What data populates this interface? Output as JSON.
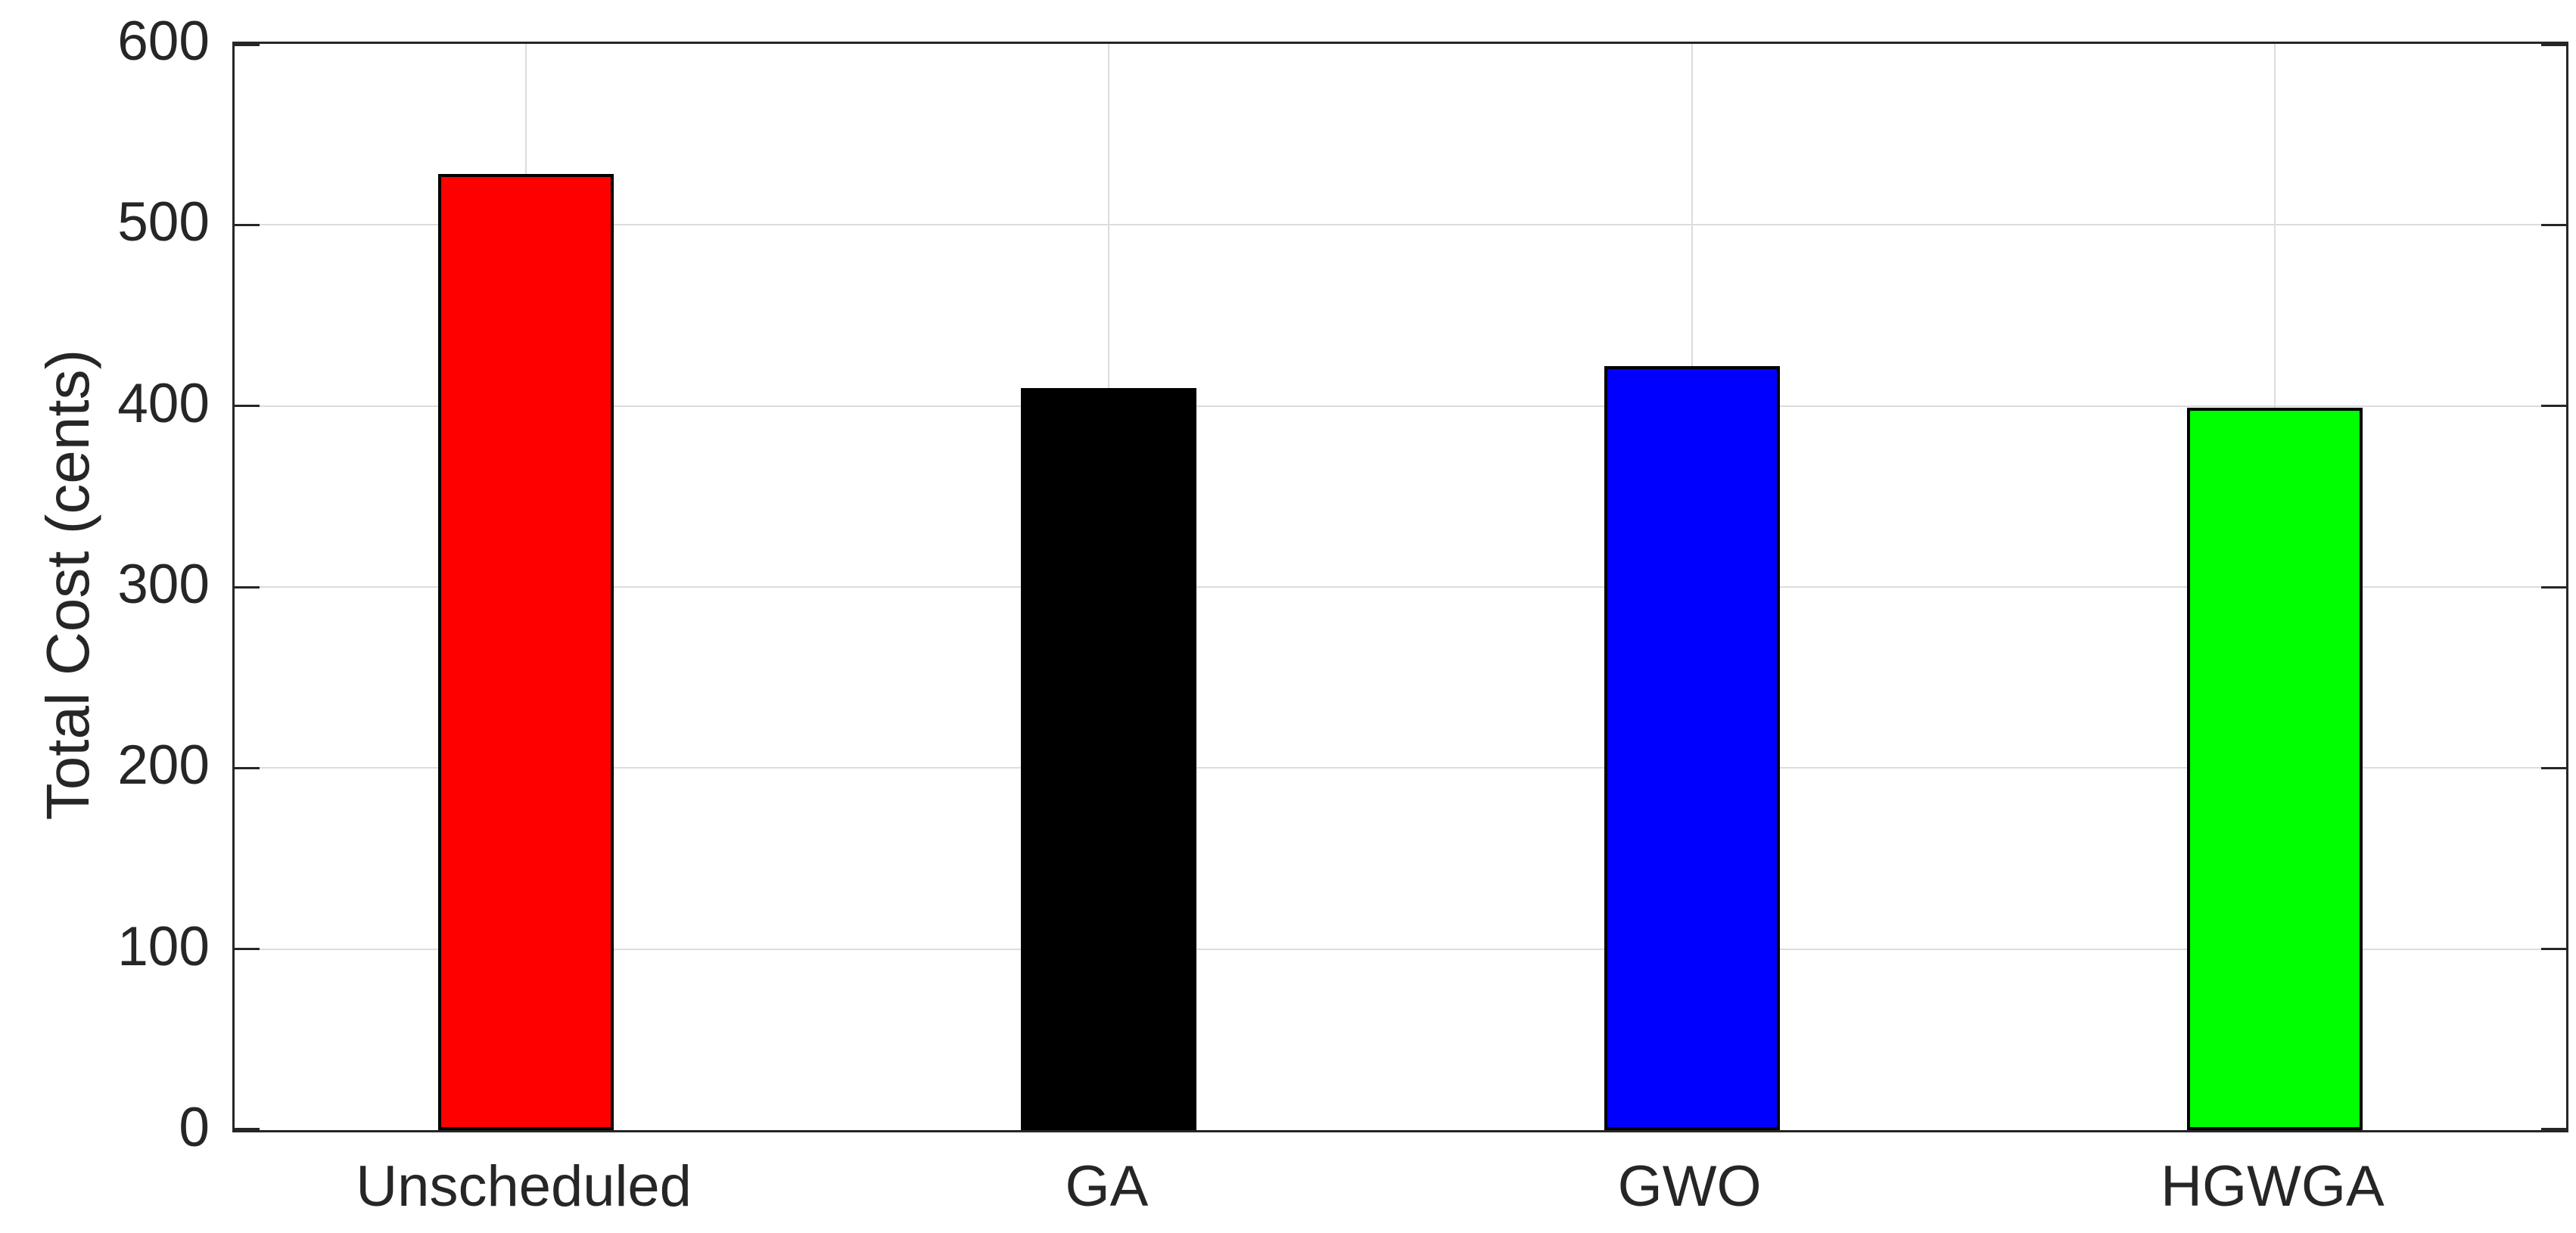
{
  "chart_data": {
    "type": "bar",
    "categories": [
      "Unscheduled",
      "GA",
      "GWO",
      "HGWGA"
    ],
    "values": [
      528,
      410,
      422,
      399
    ],
    "bar_colors": [
      "#ff0000",
      "#000000",
      "#0000ff",
      "#00ff00"
    ],
    "bar_edge_color": "#000000",
    "title": "",
    "xlabel": "",
    "ylabel": "Total Cost (cents)",
    "ylim": [
      0,
      600
    ],
    "ytick_interval": 100,
    "ytick_labels": [
      "0",
      "100",
      "200",
      "300",
      "400",
      "500",
      "600"
    ],
    "grid": "on",
    "legend_position": "none"
  },
  "axes_style": {
    "axis_color": "#262626",
    "grid_color": "#dcdcdc",
    "tick_label_color": "#262626",
    "background": "#ffffff"
  }
}
